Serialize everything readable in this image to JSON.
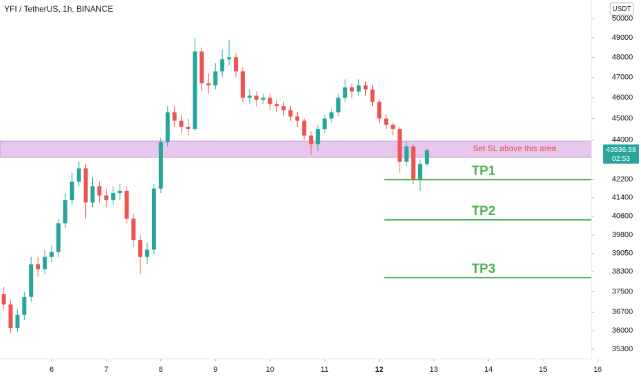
{
  "chart_data": {
    "type": "candlestick",
    "title": "YFI / TetherUS, 1h, BINANCE",
    "currency": "USDT",
    "countdown": "02:53",
    "log_scale": true,
    "grid": false,
    "up_color": "#26a69a",
    "down_color": "#ef5350",
    "x": [
      5.125,
      5.25,
      5.375,
      5.5,
      5.625,
      5.75,
      5.875,
      6.0,
      6.125,
      6.25,
      6.375,
      6.5,
      6.625,
      6.75,
      6.875,
      7.0,
      7.125,
      7.25,
      7.375,
      7.5,
      7.625,
      7.75,
      7.875,
      8.0,
      8.125,
      8.25,
      8.375,
      8.5,
      8.625,
      8.75,
      8.875,
      9.0,
      9.125,
      9.25,
      9.375,
      9.5,
      9.625,
      9.75,
      9.875,
      10.0,
      10.125,
      10.25,
      10.375,
      10.5,
      10.625,
      10.75,
      10.875,
      11.0,
      11.125,
      11.25,
      11.375,
      11.5,
      11.625,
      11.75,
      11.875,
      12.0,
      12.125,
      12.25,
      12.375,
      12.5,
      12.625,
      12.75,
      12.875
    ],
    "open": [
      37400,
      37000,
      36100,
      36600,
      37300,
      38600,
      38400,
      38900,
      39100,
      40300,
      41300,
      42100,
      42700,
      41200,
      41900,
      41500,
      41300,
      41600,
      41700,
      40500,
      39600,
      38900,
      39200,
      41800,
      43900,
      45300,
      44900,
      44600,
      44500,
      48300,
      46700,
      46600,
      47300,
      47900,
      48000,
      47300,
      46000,
      46100,
      45900,
      46000,
      45700,
      45600,
      45400,
      45100,
      44900,
      44200,
      43800,
      44500,
      45000,
      45300,
      46000,
      46500,
      46300,
      46600,
      46400,
      45800,
      45000,
      44700,
      44500,
      43000,
      43700,
      42200,
      42900
    ],
    "high": [
      37700,
      37200,
      36800,
      37500,
      38900,
      38900,
      39200,
      39400,
      40500,
      41600,
      42500,
      43000,
      42900,
      42300,
      42100,
      41800,
      41900,
      42000,
      41900,
      40700,
      39800,
      39500,
      42000,
      44100,
      45600,
      45600,
      45200,
      45000,
      49000,
      48500,
      47200,
      47700,
      48400,
      48900,
      48200,
      47500,
      46400,
      46300,
      46200,
      46200,
      45900,
      45800,
      45600,
      45300,
      45000,
      44400,
      44700,
      45200,
      45500,
      46200,
      46900,
      46700,
      46900,
      46800,
      46600,
      45900,
      45200,
      44800,
      44600,
      43900,
      43800,
      43100,
      43600
    ],
    "low": [
      36800,
      35900,
      35950,
      36400,
      37100,
      38100,
      38200,
      38700,
      38900,
      40100,
      41100,
      41900,
      40500,
      41000,
      41200,
      41000,
      41100,
      41300,
      40300,
      39300,
      38200,
      38600,
      39000,
      41600,
      43700,
      44600,
      44300,
      44200,
      44400,
      46300,
      46200,
      46400,
      47000,
      47600,
      47000,
      45800,
      45700,
      45600,
      45700,
      45400,
      45300,
      45100,
      44900,
      44600,
      44000,
      43300,
      43500,
      44300,
      44800,
      45100,
      45800,
      46000,
      46100,
      46100,
      45600,
      44800,
      44500,
      44200,
      42500,
      42800,
      42000,
      41700,
      42800
    ],
    "close": [
      37000,
      36100,
      36600,
      37300,
      38600,
      38400,
      38900,
      39100,
      40300,
      41300,
      42100,
      42700,
      41200,
      41900,
      41500,
      41300,
      41600,
      41700,
      40500,
      39600,
      38900,
      39200,
      41800,
      43900,
      45300,
      44900,
      44600,
      44500,
      48300,
      46700,
      46600,
      47300,
      47900,
      48000,
      47300,
      46000,
      46100,
      45900,
      46000,
      45700,
      45600,
      45400,
      45100,
      44900,
      44200,
      43800,
      44500,
      45000,
      45300,
      46000,
      46500,
      46300,
      46600,
      46400,
      45800,
      45000,
      44700,
      44500,
      43000,
      43700,
      42200,
      42900,
      43536.58
    ],
    "xlim": [
      5.055,
      16
    ],
    "xticks": [
      6,
      7,
      8,
      9,
      10,
      11,
      12,
      13,
      14,
      15,
      16
    ],
    "ylim": [
      34944,
      50986
    ],
    "yticks": [
      50000,
      49000,
      48000,
      47000,
      46000,
      45000,
      44000,
      42200,
      41400,
      40600,
      39800,
      39050,
      38300,
      37500,
      36700,
      36000,
      35300
    ],
    "zones": [
      {
        "range": [
          43200,
          43950
        ],
        "color": "#e1bee7",
        "label": "Set SL above this area"
      }
    ],
    "levels": [
      {
        "name": "TP1",
        "value": 42200,
        "x_start": 12.09,
        "color": "#4caf50"
      },
      {
        "name": "TP2",
        "value": 40450,
        "x_start": 12.09,
        "color": "#4caf50"
      },
      {
        "name": "TP3",
        "value": 38060,
        "x_start": 12.09,
        "color": "#4caf50"
      }
    ]
  }
}
